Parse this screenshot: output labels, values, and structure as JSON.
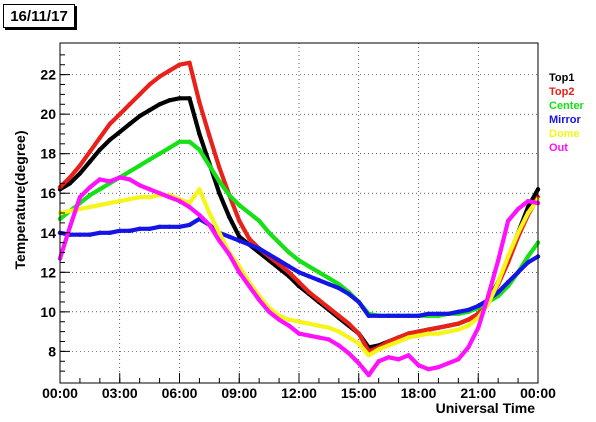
{
  "header": {
    "date": "16/11/17"
  },
  "colors": {
    "Top1": "#000000",
    "Top2": "#e8221b",
    "Center": "#16e016",
    "Mirror": "#1414e6",
    "Dome": "#f5f51a",
    "Out": "#ff10ff",
    "grid": "#000000",
    "frame": "#000000"
  },
  "chart_data": {
    "type": "scatter",
    "title": "",
    "xlabel": "Universal Time",
    "ylabel": "Temperature(degree)",
    "xlim": [
      0,
      24
    ],
    "ylim": [
      6.4,
      23.6
    ],
    "grid": true,
    "legend_position": "right",
    "x_ticks": [
      0,
      3,
      6,
      9,
      12,
      15,
      18,
      21,
      24
    ],
    "x_tick_labels": [
      "00:00",
      "03:00",
      "06:00",
      "09:00",
      "12:00",
      "15:00",
      "18:00",
      "21:00",
      "00:00"
    ],
    "y_ticks": [
      8,
      10,
      12,
      14,
      16,
      18,
      20,
      22
    ],
    "y_tick_labels": [
      "8",
      "10",
      "12",
      "14",
      "16",
      "18",
      "20",
      "22"
    ],
    "series": [
      {
        "name": "Top1",
        "x": [
          0,
          0.5,
          1,
          1.5,
          2,
          2.5,
          3,
          3.5,
          4,
          4.5,
          5,
          5.5,
          6,
          6.5,
          7,
          7.5,
          8,
          8.5,
          9,
          9.5,
          10,
          10.5,
          11,
          11.5,
          12,
          12.5,
          13,
          13.5,
          14,
          14.5,
          15,
          15.5,
          16,
          16.5,
          17,
          17.5,
          18,
          18.5,
          19,
          19.5,
          20,
          20.5,
          21,
          21.5,
          22,
          22.5,
          23,
          23.5,
          24
        ],
        "y": [
          16.2,
          16.5,
          17.0,
          17.6,
          18.2,
          18.7,
          19.1,
          19.5,
          19.9,
          20.2,
          20.5,
          20.7,
          20.8,
          20.8,
          19.0,
          17.5,
          16.0,
          14.8,
          13.8,
          13.4,
          13.0,
          12.6,
          12.2,
          11.8,
          11.3,
          10.9,
          10.5,
          10.1,
          9.7,
          9.3,
          8.9,
          8.2,
          8.3,
          8.5,
          8.7,
          8.9,
          9.0,
          9.1,
          9.2,
          9.3,
          9.4,
          9.6,
          9.9,
          10.6,
          11.5,
          12.7,
          14.0,
          15.3,
          16.2
        ]
      },
      {
        "name": "Top2",
        "x": [
          0,
          0.5,
          1,
          1.5,
          2,
          2.5,
          3,
          3.5,
          4,
          4.5,
          5,
          5.5,
          6,
          6.5,
          7,
          7.5,
          8,
          8.5,
          9,
          9.5,
          10,
          10.5,
          11,
          11.5,
          12,
          12.5,
          13,
          13.5,
          14,
          14.5,
          15,
          15.5,
          16,
          16.5,
          17,
          17.5,
          18,
          18.5,
          19,
          19.5,
          20,
          20.5,
          21,
          21.5,
          22,
          22.5,
          23,
          23.5,
          24
        ],
        "y": [
          16.3,
          16.8,
          17.4,
          18.1,
          18.8,
          19.5,
          20.0,
          20.5,
          21.0,
          21.5,
          21.9,
          22.2,
          22.5,
          22.6,
          20.6,
          18.9,
          17.3,
          15.9,
          14.6,
          13.7,
          13.2,
          12.8,
          12.4,
          12.0,
          11.5,
          11.0,
          10.6,
          10.2,
          9.8,
          9.4,
          8.9,
          8.0,
          8.2,
          8.5,
          8.7,
          8.9,
          9.0,
          9.1,
          9.2,
          9.3,
          9.4,
          9.6,
          9.9,
          10.5,
          11.4,
          12.5,
          13.8,
          14.9,
          15.8
        ]
      },
      {
        "name": "Center",
        "x": [
          0,
          0.5,
          1,
          1.5,
          2,
          2.5,
          3,
          3.5,
          4,
          4.5,
          5,
          5.5,
          6,
          6.5,
          7,
          7.5,
          8,
          8.5,
          9,
          9.5,
          10,
          10.5,
          11,
          11.5,
          12,
          12.5,
          13,
          13.5,
          14,
          14.5,
          15,
          15.5,
          16,
          16.5,
          17,
          17.5,
          18,
          18.5,
          19,
          19.5,
          20,
          20.5,
          21,
          21.5,
          22,
          22.5,
          23,
          23.5,
          24
        ],
        "y": [
          14.7,
          15.1,
          15.5,
          15.9,
          16.2,
          16.5,
          16.8,
          17.1,
          17.4,
          17.7,
          18.0,
          18.3,
          18.6,
          18.6,
          18.2,
          17.4,
          16.6,
          15.9,
          15.4,
          15.0,
          14.6,
          14.0,
          13.5,
          13.0,
          12.6,
          12.3,
          12.0,
          11.7,
          11.4,
          11.0,
          10.5,
          9.9,
          9.8,
          9.8,
          9.8,
          9.8,
          9.8,
          9.8,
          9.8,
          9.9,
          9.9,
          10.0,
          10.2,
          10.5,
          10.8,
          11.3,
          12.0,
          12.8,
          13.5
        ]
      },
      {
        "name": "Mirror",
        "x": [
          0,
          0.5,
          1,
          1.5,
          2,
          2.5,
          3,
          3.5,
          4,
          4.5,
          5,
          5.5,
          6,
          6.5,
          7,
          7.5,
          8,
          8.5,
          9,
          9.5,
          10,
          10.5,
          11,
          11.5,
          12,
          12.5,
          13,
          13.5,
          14,
          14.5,
          15,
          15.5,
          16,
          16.5,
          17,
          17.5,
          18,
          18.5,
          19,
          19.5,
          20,
          20.5,
          21,
          21.5,
          22,
          22.5,
          23,
          23.5,
          24
        ],
        "y": [
          14.0,
          13.9,
          13.9,
          13.9,
          14.0,
          14.0,
          14.1,
          14.1,
          14.2,
          14.2,
          14.3,
          14.3,
          14.3,
          14.4,
          14.7,
          14.4,
          14.0,
          13.8,
          13.6,
          13.4,
          13.2,
          12.9,
          12.6,
          12.3,
          12.0,
          11.8,
          11.6,
          11.4,
          11.2,
          10.9,
          10.5,
          9.8,
          9.8,
          9.8,
          9.8,
          9.8,
          9.8,
          9.9,
          9.9,
          9.9,
          10.0,
          10.1,
          10.3,
          10.6,
          11.0,
          11.5,
          12.0,
          12.5,
          12.8
        ]
      },
      {
        "name": "Dome",
        "x": [
          0,
          0.5,
          1,
          1.5,
          2,
          2.5,
          3,
          3.5,
          4,
          4.5,
          5,
          5.5,
          6,
          6.5,
          7,
          7.5,
          8,
          8.5,
          9,
          9.5,
          10,
          10.5,
          11,
          11.5,
          12,
          12.5,
          13,
          13.5,
          14,
          14.5,
          15,
          15.5,
          16,
          16.5,
          17,
          17.5,
          18,
          18.5,
          19,
          19.5,
          20,
          20.5,
          21,
          21.5,
          22,
          22.5,
          23,
          23.5,
          24
        ],
        "y": [
          15.0,
          15.1,
          15.2,
          15.3,
          15.4,
          15.5,
          15.6,
          15.7,
          15.8,
          15.8,
          15.9,
          15.9,
          15.7,
          15.5,
          16.2,
          15.0,
          14.0,
          13.0,
          12.3,
          11.5,
          10.8,
          10.2,
          9.8,
          9.6,
          9.5,
          9.4,
          9.3,
          9.2,
          9.0,
          8.7,
          8.4,
          7.8,
          8.1,
          8.3,
          8.5,
          8.7,
          8.8,
          8.9,
          8.9,
          9.0,
          9.1,
          9.3,
          9.7,
          10.4,
          11.5,
          12.8,
          14.0,
          15.0,
          15.7
        ]
      },
      {
        "name": "Out",
        "x": [
          0,
          0.5,
          1,
          1.5,
          2,
          2.5,
          3,
          3.5,
          4,
          4.5,
          5,
          5.5,
          6,
          6.5,
          7,
          7.5,
          8,
          8.5,
          9,
          9.5,
          10,
          10.5,
          11,
          11.5,
          12,
          12.5,
          13,
          13.5,
          14,
          14.5,
          15,
          15.5,
          16,
          16.5,
          17,
          17.5,
          18,
          18.5,
          19,
          19.5,
          20,
          20.5,
          21,
          21.5,
          22,
          22.5,
          23,
          23.5,
          24
        ],
        "y": [
          12.7,
          14.3,
          15.8,
          16.3,
          16.7,
          16.6,
          16.8,
          16.7,
          16.4,
          16.2,
          16.0,
          15.8,
          15.6,
          15.3,
          14.9,
          14.4,
          13.6,
          12.9,
          12.0,
          11.3,
          10.6,
          10.0,
          9.6,
          9.3,
          8.9,
          8.8,
          8.7,
          8.6,
          8.3,
          7.9,
          7.4,
          6.8,
          7.5,
          7.7,
          7.6,
          7.8,
          7.3,
          7.1,
          7.2,
          7.4,
          7.6,
          8.2,
          9.2,
          10.8,
          12.6,
          14.6,
          15.2,
          15.6,
          15.5
        ]
      }
    ]
  }
}
